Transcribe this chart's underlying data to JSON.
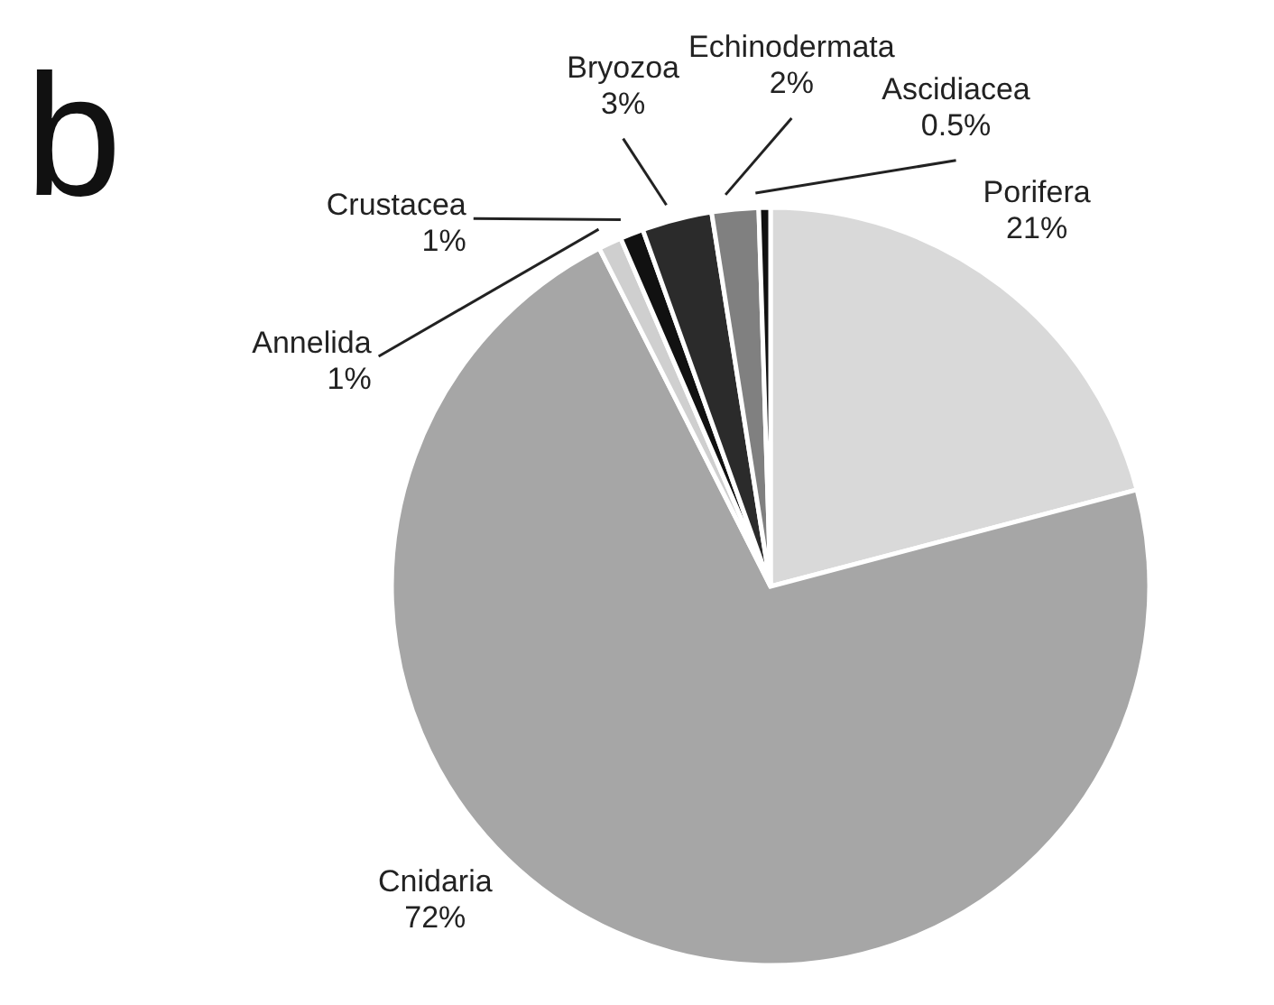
{
  "chart_data": {
    "type": "pie",
    "annotations": [
      "b"
    ],
    "categories": [
      "Porifera",
      "Cnidaria",
      "Annelida",
      "Crustacea",
      "Bryozoa",
      "Echinodermata",
      "Ascidiacea"
    ],
    "values": [
      21,
      72,
      1,
      1,
      3,
      2,
      0.5
    ],
    "colors": [
      "#d9d9d9",
      "#a6a6a6",
      "#cfcfcf",
      "#111111",
      "#2b2b2b",
      "#808080",
      "#111111"
    ],
    "value_labels": [
      "21%",
      "72%",
      "1%",
      "1%",
      "3%",
      "2%",
      "0.5%"
    ]
  }
}
